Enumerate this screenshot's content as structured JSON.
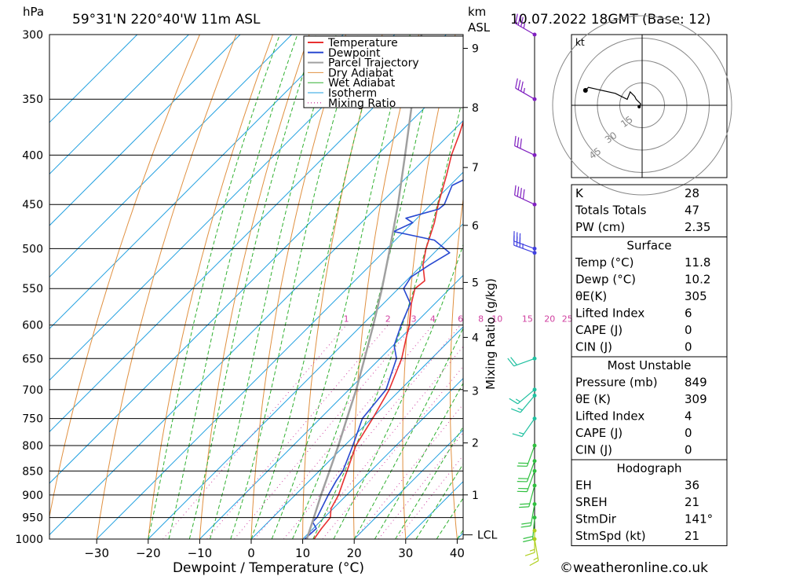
{
  "header": {
    "pressure_unit": "hPa",
    "location": "59°31'N  220°40'W  11m  ASL",
    "km_unit": "km",
    "km_unit2": "ASL",
    "datetime": "10.07.2022  18GMT  (Base: 12)"
  },
  "chart_data": {
    "type": "line",
    "chart_kind": "skew-T log-P sounding",
    "xlabel": "Dewpoint / Temperature (°C)",
    "ylabel_left": "hPa",
    "ylabel_right": "Mixing Ratio (g/kg)",
    "x_ticks": [
      -30,
      -20,
      -10,
      0,
      10,
      20,
      30,
      40
    ],
    "y_ticks": [
      300,
      350,
      400,
      450,
      500,
      550,
      600,
      650,
      700,
      750,
      800,
      850,
      900,
      950,
      1000
    ],
    "ylim": [
      1000,
      300
    ],
    "y_scale": "log",
    "km_ticks": [
      {
        "km": "9",
        "p": 310
      },
      {
        "km": "8",
        "p": 357
      },
      {
        "km": "7",
        "p": 412
      },
      {
        "km": "6",
        "p": 473
      },
      {
        "km": "5",
        "p": 542
      },
      {
        "km": "4",
        "p": 618
      },
      {
        "km": "3",
        "p": 702
      },
      {
        "km": "2",
        "p": 795
      },
      {
        "km": "1",
        "p": 900
      }
    ],
    "lcl_label": "LCL",
    "lcl_pressure": 990,
    "mixing_ratio_labels": [
      "1",
      "2",
      "3",
      "4",
      "6",
      "8",
      "10",
      "15",
      "20",
      "25"
    ],
    "legend": [
      "Temperature",
      "Dewpoint",
      "Parcel Trajectory",
      "Dry Adiabat",
      "Wet Adiabat",
      "Isotherm",
      "Mixing Ratio"
    ],
    "legend_placement": "top-center",
    "colors": {
      "temperature": "#e83030",
      "dewpoint": "#2848d0",
      "parcel": "#a0a0a0",
      "dry_adiabat": "#e09040",
      "wet_adiabat": "#30b030",
      "isotherm": "#20a0e0",
      "mixing_ratio": "#d040a0",
      "wind": "#8020c0"
    },
    "series": [
      {
        "name": "Temperature",
        "points": [
          [
            1000,
            12.2
          ],
          [
            975,
            11.6
          ],
          [
            950,
            11.2
          ],
          [
            930,
            9.6
          ],
          [
            900,
            8.4
          ],
          [
            870,
            6.6
          ],
          [
            850,
            5.4
          ],
          [
            800,
            2.2
          ],
          [
            750,
            0.2
          ],
          [
            700,
            -2.2
          ],
          [
            650,
            -5.8
          ],
          [
            620,
            -8.8
          ],
          [
            600,
            -10.8
          ],
          [
            570,
            -14.6
          ],
          [
            550,
            -16.8
          ],
          [
            540,
            -16.4
          ],
          [
            520,
            -19.8
          ],
          [
            500,
            -22.4
          ],
          [
            470,
            -25.8
          ],
          [
            450,
            -28.6
          ],
          [
            420,
            -32.6
          ],
          [
            400,
            -35.6
          ],
          [
            380,
            -38.2
          ],
          [
            350,
            -42.8
          ],
          [
            330,
            -46.4
          ],
          [
            310,
            -49.6
          ],
          [
            300,
            -51.6
          ]
        ]
      },
      {
        "name": "Dewpoint",
        "points": [
          [
            1000,
            10.4
          ],
          [
            975,
            10.6
          ],
          [
            960,
            8.6
          ],
          [
            950,
            8.6
          ],
          [
            900,
            6.4
          ],
          [
            870,
            5.2
          ],
          [
            850,
            4.6
          ],
          [
            800,
            1.6
          ],
          [
            750,
            -1.8
          ],
          [
            700,
            -2.8
          ],
          [
            650,
            -6.8
          ],
          [
            630,
            -9.8
          ],
          [
            600,
            -12.4
          ],
          [
            570,
            -14.8
          ],
          [
            550,
            -19.0
          ],
          [
            535,
            -19.8
          ],
          [
            520,
            -18.6
          ],
          [
            505,
            -17.0
          ],
          [
            490,
            -22.4
          ],
          [
            480,
            -32.0
          ],
          [
            470,
            -30.0
          ],
          [
            465,
            -32.2
          ],
          [
            455,
            -27.6
          ],
          [
            450,
            -27.4
          ],
          [
            430,
            -29.6
          ],
          [
            420,
            -27.6
          ],
          [
            400,
            -28.6
          ],
          [
            380,
            -29.0
          ],
          [
            360,
            -31.2
          ],
          [
            350,
            -32.6
          ],
          [
            330,
            -32.8
          ],
          [
            310,
            -33.0
          ],
          [
            300,
            -37.8
          ]
        ]
      },
      {
        "name": "Parcel Trajectory",
        "points": [
          [
            1000,
            10.8
          ],
          [
            950,
            8.0
          ],
          [
            900,
            5.0
          ],
          [
            850,
            2.0
          ],
          [
            800,
            -1.2
          ],
          [
            750,
            -4.8
          ],
          [
            700,
            -8.6
          ],
          [
            650,
            -13.0
          ],
          [
            600,
            -17.8
          ],
          [
            550,
            -23.2
          ],
          [
            500,
            -29.4
          ],
          [
            450,
            -36.4
          ],
          [
            400,
            -44.6
          ],
          [
            350,
            -54.0
          ],
          [
            300,
            -64.8
          ]
        ]
      }
    ],
    "winds": [
      {
        "p": 300,
        "dir": 300,
        "spd": 35
      },
      {
        "p": 350,
        "dir": 300,
        "spd": 35
      },
      {
        "p": 400,
        "dir": 295,
        "spd": 30
      },
      {
        "p": 450,
        "dir": 295,
        "spd": 40
      },
      {
        "p": 500,
        "dir": 290,
        "spd": 30
      },
      {
        "p": 505,
        "dir": 290,
        "spd": 35
      },
      {
        "p": 650,
        "dir": 250,
        "spd": 20
      },
      {
        "p": 700,
        "dir": 230,
        "spd": 15
      },
      {
        "p": 710,
        "dir": 220,
        "spd": 15
      },
      {
        "p": 750,
        "dir": 215,
        "spd": 15
      },
      {
        "p": 800,
        "dir": 200,
        "spd": 20
      },
      {
        "p": 830,
        "dir": 200,
        "spd": 20
      },
      {
        "p": 850,
        "dir": 200,
        "spd": 20
      },
      {
        "p": 880,
        "dir": 195,
        "spd": 20
      },
      {
        "p": 920,
        "dir": 190,
        "spd": 20
      },
      {
        "p": 950,
        "dir": 185,
        "spd": 20
      },
      {
        "p": 980,
        "dir": 180,
        "spd": 15
      },
      {
        "p": 1000,
        "dir": 170,
        "spd": 15
      }
    ],
    "hodograph": {
      "unit": "kt",
      "ring_labels": [
        "15",
        "30",
        "45"
      ],
      "points": [
        [
          -2,
          -1
        ],
        [
          -1,
          1
        ],
        [
          -4,
          4
        ],
        [
          -5,
          6
        ],
        [
          -8,
          9
        ],
        [
          -10,
          4
        ],
        [
          -18,
          8
        ],
        [
          -36,
          12
        ],
        [
          -38,
          10
        ]
      ]
    }
  },
  "indices": {
    "rows": [
      {
        "label": "K",
        "value": "28"
      },
      {
        "label": "Totals Totals",
        "value": "47"
      },
      {
        "label": "PW (cm)",
        "value": "2.35"
      }
    ]
  },
  "surface": {
    "title": "Surface",
    "rows": [
      {
        "label": "Temp (°C)",
        "value": "11.8"
      },
      {
        "label": "Dewp (°C)",
        "value": "10.2"
      },
      {
        "label": "θE(K)",
        "value": "305"
      },
      {
        "label": "Lifted Index",
        "value": "6"
      },
      {
        "label": "CAPE (J)",
        "value": "0"
      },
      {
        "label": "CIN (J)",
        "value": "0"
      }
    ]
  },
  "most_unstable": {
    "title": "Most Unstable",
    "rows": [
      {
        "label": "Pressure (mb)",
        "value": "849"
      },
      {
        "label": "θE (K)",
        "value": "309"
      },
      {
        "label": "Lifted Index",
        "value": "4"
      },
      {
        "label": "CAPE (J)",
        "value": "0"
      },
      {
        "label": "CIN (J)",
        "value": "0"
      }
    ]
  },
  "hodograph_table": {
    "title": "Hodograph",
    "rows": [
      {
        "label": "EH",
        "value": "36"
      },
      {
        "label": "SREH",
        "value": "21"
      },
      {
        "label": "StmDir",
        "value": "141°"
      },
      {
        "label": "StmSpd (kt)",
        "value": "21"
      }
    ]
  },
  "footer": {
    "credit": "©weatheronline.co.uk"
  }
}
